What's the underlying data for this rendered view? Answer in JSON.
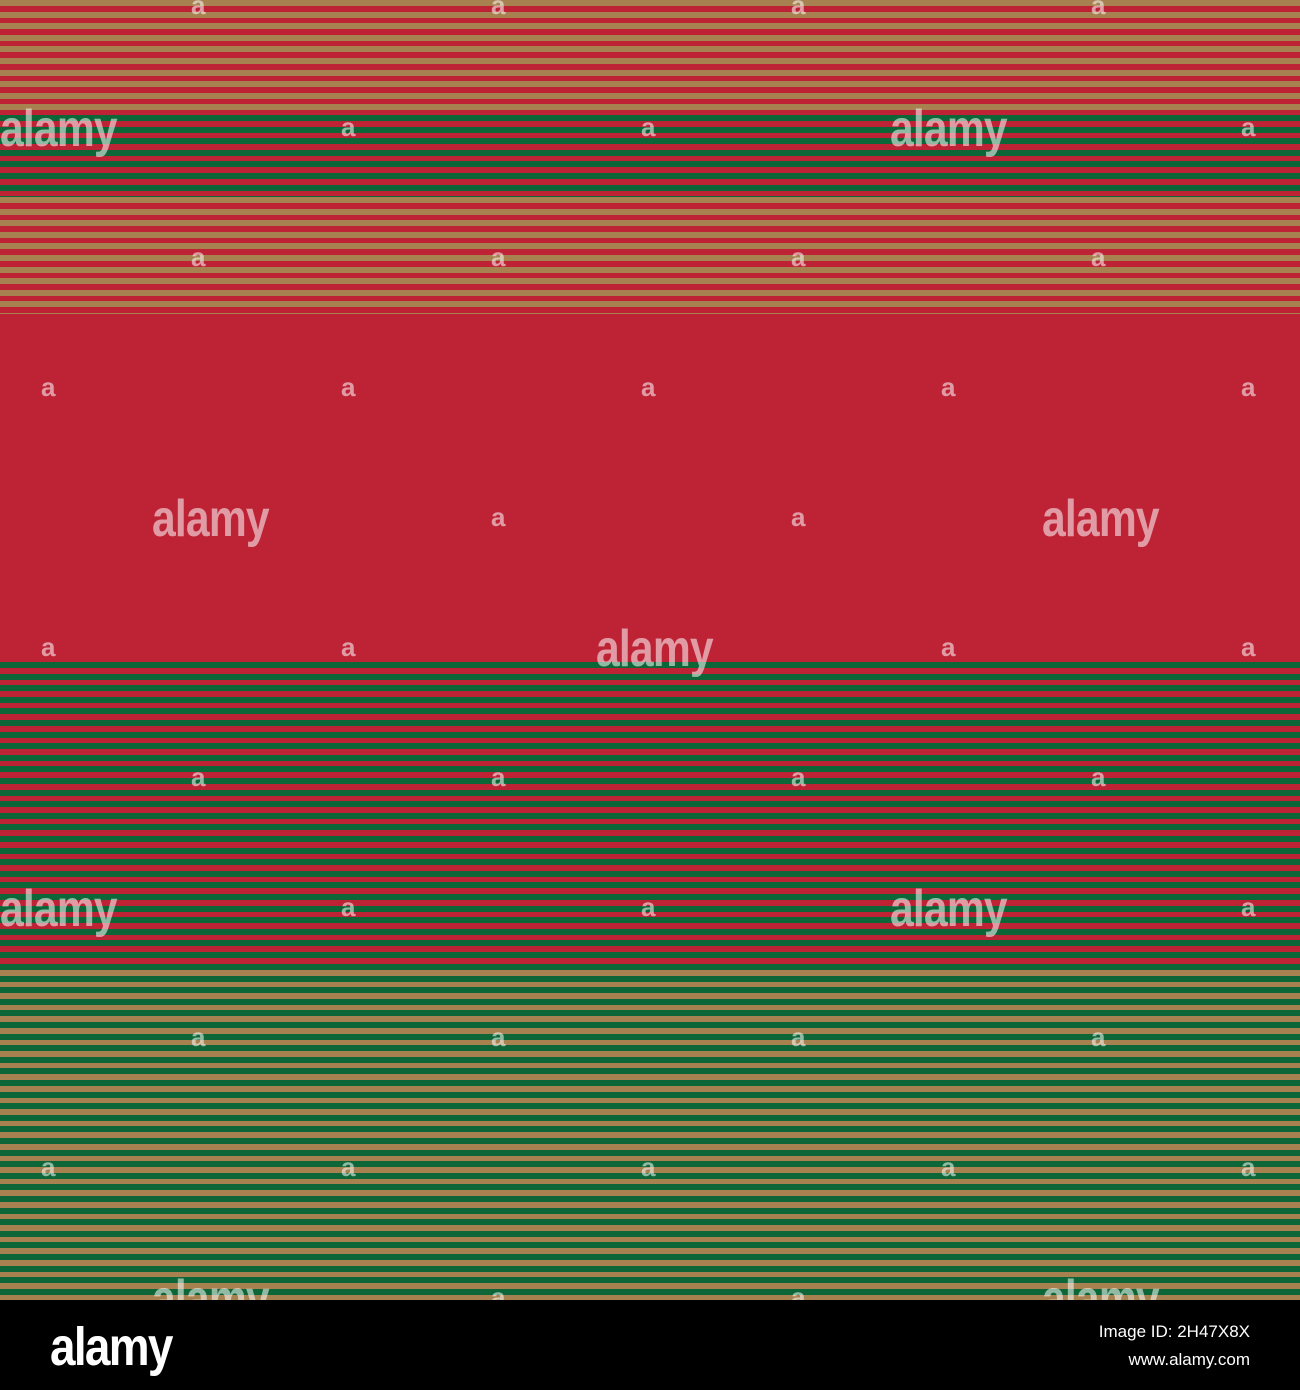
{
  "colors": {
    "red": "#bd2235",
    "gold": "#a7814f",
    "green": "#0d6638",
    "footer_bg": "#000000",
    "footer_text": "#ffffff"
  },
  "watermark": {
    "big_text": "alamy",
    "small_text": "a"
  },
  "footer": {
    "logo": "alamy",
    "image_id": "Image ID: 2H47X8X",
    "url": "www.alamy.com"
  }
}
